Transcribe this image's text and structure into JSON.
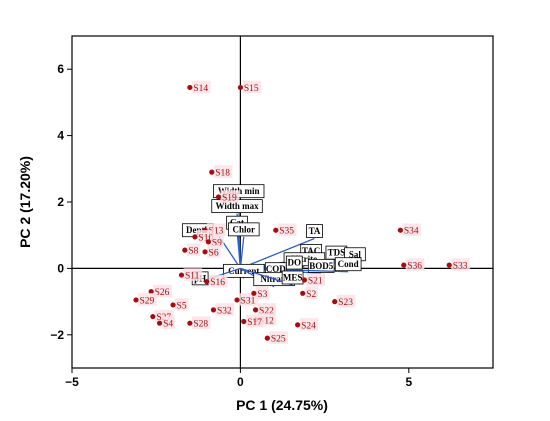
{
  "chart_data": {
    "type": "scatter",
    "title": "",
    "xlabel": "PC 1 (24.75%)",
    "ylabel": "PC 2 (17.20%)",
    "xlim": [
      -5,
      7.5
    ],
    "ylim": [
      -3.0,
      7.0
    ],
    "xticks": [
      -5,
      0,
      5
    ],
    "yticks": [
      -2,
      0,
      2,
      4,
      6
    ],
    "x_tick_labels": [
      "−5",
      "0",
      "5"
    ],
    "y_tick_labels": [
      "−2",
      "0",
      "2",
      "4",
      "6"
    ],
    "grid": false,
    "zero_lines": true,
    "colors": {
      "points": "#a01010",
      "point_labels": "#a01010",
      "loadings": "#2f5fc4",
      "axes": "#000000",
      "label_bg": "#fde0e6"
    },
    "samples": [
      {
        "label": "S14",
        "x": -1.5,
        "y": 5.45
      },
      {
        "label": "S15",
        "x": 0.0,
        "y": 5.45
      },
      {
        "label": "S18",
        "x": -0.85,
        "y": 2.9
      },
      {
        "label": "S19",
        "x": -0.65,
        "y": 2.15
      },
      {
        "label": "S13",
        "x": -1.05,
        "y": 1.15
      },
      {
        "label": "S10",
        "x": -1.35,
        "y": 0.95
      },
      {
        "label": "S9",
        "x": -0.95,
        "y": 0.8
      },
      {
        "label": "S8",
        "x": -1.65,
        "y": 0.55
      },
      {
        "label": "S6",
        "x": -1.05,
        "y": 0.5
      },
      {
        "label": "S35",
        "x": 1.05,
        "y": 1.15
      },
      {
        "label": "S11",
        "x": -1.75,
        "y": -0.2
      },
      {
        "label": "S16",
        "x": -1.0,
        "y": -0.4
      },
      {
        "label": "S26",
        "x": -2.65,
        "y": -0.7
      },
      {
        "label": "S29",
        "x": -3.1,
        "y": -0.95
      },
      {
        "label": "S5",
        "x": -2.0,
        "y": -1.1
      },
      {
        "label": "S27",
        "x": -2.6,
        "y": -1.45
      },
      {
        "label": "S4",
        "x": -2.4,
        "y": -1.65
      },
      {
        "label": "S28",
        "x": -1.5,
        "y": -1.65
      },
      {
        "label": "S32",
        "x": -0.8,
        "y": -1.25
      },
      {
        "label": "S31",
        "x": -0.1,
        "y": -0.95
      },
      {
        "label": "S3",
        "x": 0.4,
        "y": -0.75
      },
      {
        "label": "S22",
        "x": 0.45,
        "y": -1.25
      },
      {
        "label": "S12",
        "x": 0.45,
        "y": -1.55
      },
      {
        "label": "S17",
        "x": 0.1,
        "y": -1.6
      },
      {
        "label": "S25",
        "x": 0.8,
        "y": -2.1
      },
      {
        "label": "S24",
        "x": 1.7,
        "y": -1.7
      },
      {
        "label": "S2",
        "x": 1.85,
        "y": -0.75
      },
      {
        "label": "S21",
        "x": 1.9,
        "y": -0.35
      },
      {
        "label": "S23",
        "x": 2.8,
        "y": -1.0
      },
      {
        "label": "S34",
        "x": 4.75,
        "y": 1.15
      },
      {
        "label": "S36",
        "x": 4.85,
        "y": 0.1
      },
      {
        "label": "S33",
        "x": 6.2,
        "y": 0.1
      }
    ],
    "loadings": [
      {
        "label": "Width min",
        "x": -0.05,
        "y": 2.1
      },
      {
        "label": "Width max",
        "x": -0.1,
        "y": 1.65
      },
      {
        "label": "Cat",
        "x": -0.1,
        "y": 1.15
      },
      {
        "label": "Depth",
        "x": -0.75,
        "y": 1.15
      },
      {
        "label": "Chlor",
        "x": 0.1,
        "y": 0.95
      },
      {
        "label": "TA",
        "x": 2.2,
        "y": 0.9
      },
      {
        "label": "TAC",
        "x": 2.1,
        "y": 0.3
      },
      {
        "label": "TDS",
        "x": 2.85,
        "y": 0.25
      },
      {
        "label": "Sal",
        "x": 3.4,
        "y": 0.2
      },
      {
        "label": "Nitrite",
        "x": 1.9,
        "y": 0.05
      },
      {
        "label": "DO",
        "x": 1.6,
        "y": -0.05
      },
      {
        "label": "BOD5",
        "x": 2.4,
        "y": -0.15
      },
      {
        "label": "Cond",
        "x": 3.2,
        "y": -0.1
      },
      {
        "label": "COD",
        "x": 1.05,
        "y": -0.25
      },
      {
        "label": "Current",
        "x": 0.1,
        "y": -0.3
      },
      {
        "label": "Nitrate",
        "x": 1.0,
        "y": -0.55
      },
      {
        "label": "MES",
        "x": 1.55,
        "y": -0.5
      },
      {
        "label": "pH",
        "x": -0.9,
        "y": -0.3
      }
    ]
  }
}
